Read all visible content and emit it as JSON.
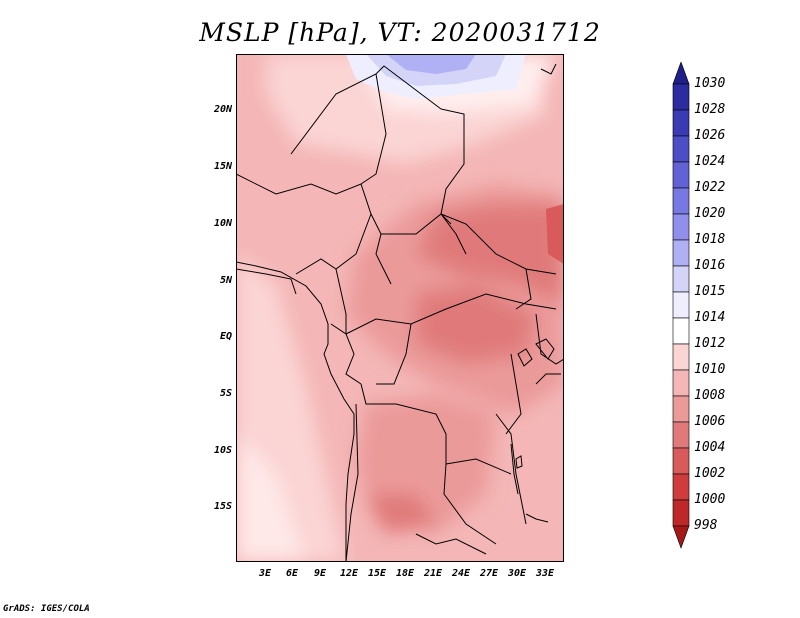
{
  "title": "MSLP [hPa], VT: 2020031712",
  "credit": "GrADS: IGES/COLA",
  "map": {
    "lat_labels": [
      "20N",
      "15N",
      "10N",
      "5N",
      "EQ",
      "5S",
      "10S",
      "15S"
    ],
    "lon_labels": [
      "3E",
      "6E",
      "9E",
      "12E",
      "15E",
      "18E",
      "21E",
      "24E",
      "27E",
      "30E",
      "33E"
    ]
  },
  "colorbar": {
    "labels": [
      "1030",
      "1028",
      "1026",
      "1024",
      "1022",
      "1020",
      "1018",
      "1016",
      "1015",
      "1014",
      "1012",
      "1010",
      "1008",
      "1006",
      "1004",
      "1002",
      "1000",
      "998"
    ],
    "colors": [
      "#1f1f8a",
      "#2c2ca0",
      "#3a3ab4",
      "#4d4dc6",
      "#6262d6",
      "#7878e2",
      "#9090ec",
      "#b0b0f4",
      "#d4d4f8",
      "#eeeeff",
      "#ffffff",
      "#fbd4d4",
      "#f4b6b6",
      "#eb9a9a",
      "#e07a7a",
      "#d85a5a",
      "#cf3c3c",
      "#bf2828",
      "#a51818"
    ]
  }
}
